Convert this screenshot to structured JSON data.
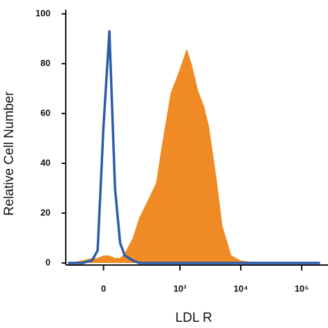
{
  "chart_data": {
    "type": "area",
    "x_label": "LDL R",
    "y_label": "Relative Cell Number",
    "xscale": "asinh",
    "x": [
      -200,
      -100,
      -50,
      -25,
      0,
      25,
      50,
      75,
      100,
      150,
      200,
      300,
      400,
      500,
      700,
      1000,
      1300,
      1600,
      2000,
      2500,
      3000,
      4000,
      5000,
      7000,
      10000,
      20000,
      50000,
      100000,
      200000
    ],
    "series": [
      {
        "color": "#f08a24",
        "fill": true,
        "values": [
          0,
          1,
          2,
          2,
          3,
          3,
          2,
          2,
          4,
          10,
          18,
          26,
          32,
          47,
          68,
          78,
          86,
          79,
          69,
          63,
          55,
          34,
          15,
          3,
          1,
          0,
          0,
          0,
          0
        ]
      },
      {
        "color": "#2a5ca8",
        "fill": false,
        "values": [
          0,
          0,
          1,
          5,
          55,
          93,
          30,
          8,
          3,
          1,
          0,
          0,
          0,
          0,
          0,
          0,
          0,
          0,
          0,
          0,
          0,
          0,
          0,
          0,
          0,
          0,
          0,
          0,
          0
        ]
      }
    ],
    "xlim": [
      -220,
      270000
    ],
    "ylim": [
      0,
      100
    ],
    "xticks": [
      0,
      {
        "value": 1000,
        "label": "10³"
      },
      {
        "value": 10000,
        "label": "10⁴"
      },
      {
        "value": 100000,
        "label": "10⁵"
      }
    ],
    "yticks": [
      0,
      20,
      40,
      60,
      80,
      100
    ]
  }
}
